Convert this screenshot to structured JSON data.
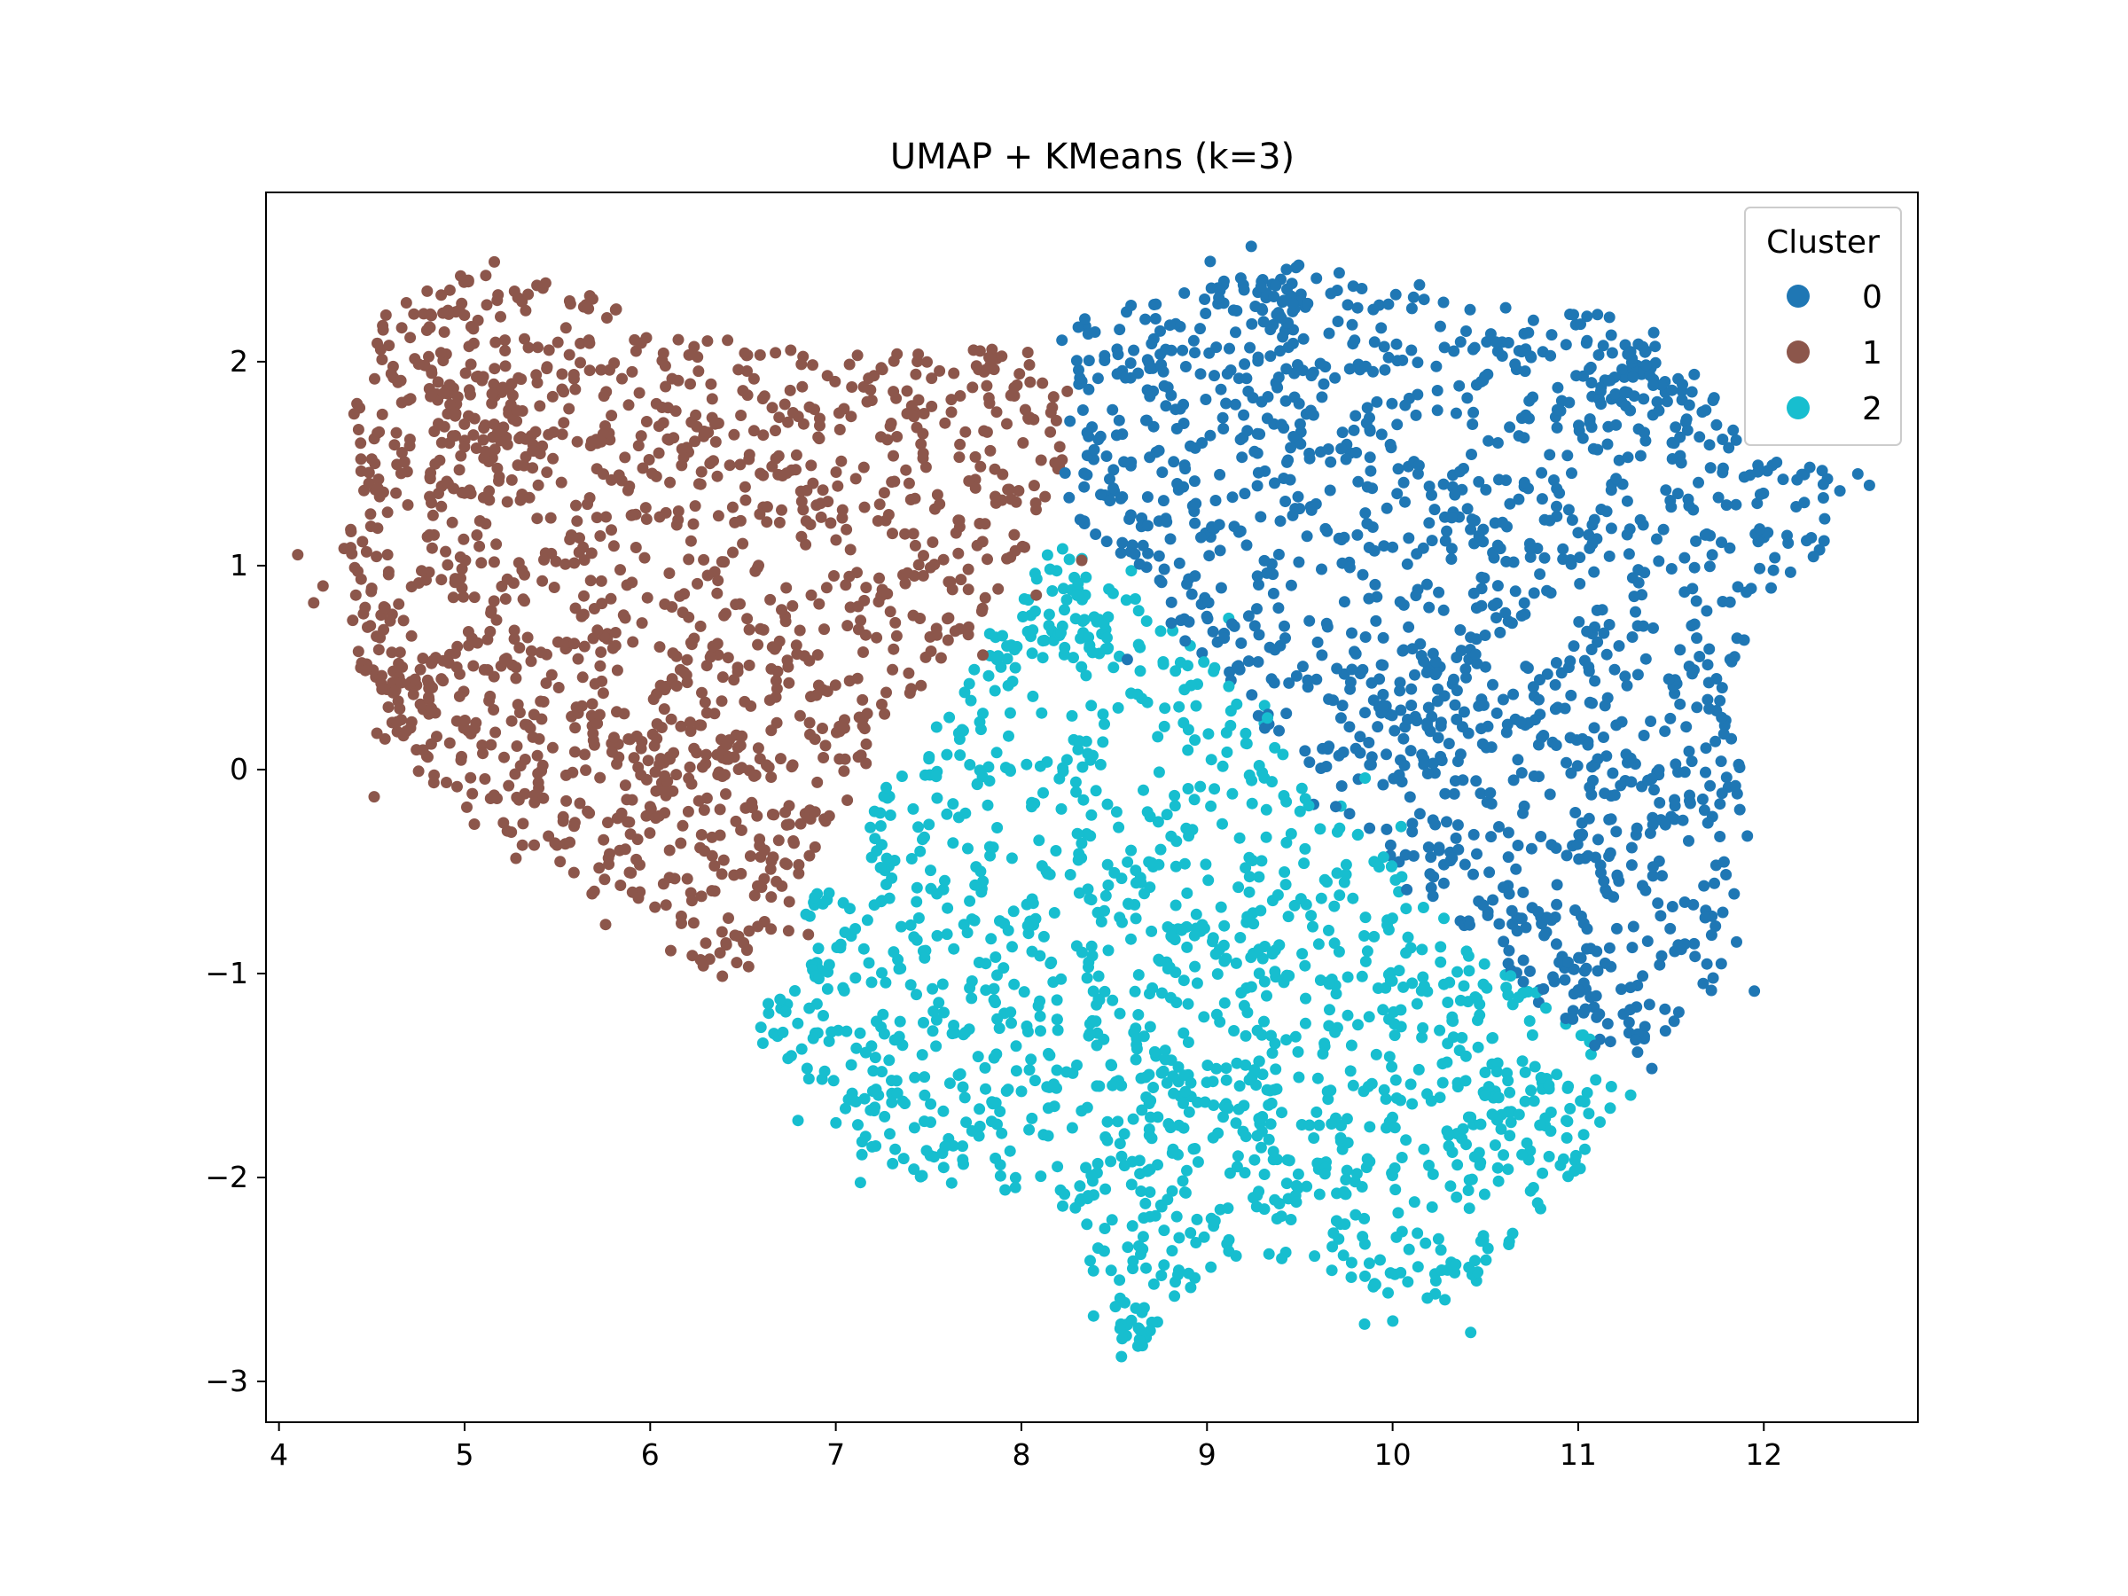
{
  "chart_data": {
    "type": "scatter",
    "title": "UMAP + KMeans (k=3)",
    "xlabel": "",
    "ylabel": "",
    "xlim": [
      3.93,
      12.83
    ],
    "ylim": [
      -3.2,
      2.83
    ],
    "xticks": [
      4,
      5,
      6,
      7,
      8,
      9,
      10,
      11,
      12
    ],
    "yticks": [
      -3,
      -2,
      -1,
      0,
      1,
      2
    ],
    "xtick_labels": [
      "4",
      "5",
      "6",
      "7",
      "8",
      "9",
      "10",
      "11",
      "12"
    ],
    "ytick_labels": [
      "−3",
      "−2",
      "−1",
      "0",
      "1",
      "2"
    ],
    "grid": false,
    "legend": {
      "title": "Cluster",
      "placement": "top-right",
      "entries": [
        "0",
        "1",
        "2"
      ]
    },
    "series": [
      {
        "name": "0",
        "color": "#1f77b4",
        "outline": [
          [
            8.3,
            2.2
          ],
          [
            9.1,
            2.45
          ],
          [
            9.5,
            2.5
          ],
          [
            10.1,
            2.35
          ],
          [
            10.7,
            2.25
          ],
          [
            11.2,
            2.25
          ],
          [
            11.6,
            2.0
          ],
          [
            11.9,
            1.6
          ],
          [
            12.45,
            1.45
          ],
          [
            12.35,
            1.1
          ],
          [
            12.0,
            0.85
          ],
          [
            11.85,
            0.3
          ],
          [
            11.95,
            -0.3
          ],
          [
            11.95,
            -0.8
          ],
          [
            11.6,
            -1.15
          ],
          [
            11.4,
            -1.4
          ],
          [
            11.0,
            -1.35
          ],
          [
            10.6,
            -1.0
          ],
          [
            10.4,
            -0.8
          ],
          [
            10.0,
            -0.5
          ],
          [
            9.7,
            -0.2
          ],
          [
            9.4,
            0.1
          ],
          [
            9.1,
            0.4
          ],
          [
            8.8,
            0.7
          ],
          [
            8.4,
            1.1
          ],
          [
            8.25,
            1.3
          ],
          [
            8.2,
            1.8
          ]
        ],
        "density": 2.7,
        "clumps": [
          [
            11.3,
            1.95,
            0.18,
            40
          ],
          [
            9.35,
            2.3,
            0.22,
            25
          ],
          [
            10.3,
            0.3,
            0.3,
            30
          ],
          [
            10.9,
            -0.9,
            0.2,
            20
          ]
        ]
      },
      {
        "name": "1",
        "color": "#8c564b",
        "outline": [
          [
            4.5,
            2.2
          ],
          [
            5.0,
            2.5
          ],
          [
            5.6,
            2.35
          ],
          [
            6.2,
            2.15
          ],
          [
            6.8,
            2.05
          ],
          [
            7.3,
            2.1
          ],
          [
            7.8,
            2.1
          ],
          [
            8.25,
            2.0
          ],
          [
            8.25,
            1.6
          ],
          [
            8.1,
            1.2
          ],
          [
            7.9,
            0.9
          ],
          [
            7.65,
            0.6
          ],
          [
            7.35,
            0.25
          ],
          [
            7.1,
            -0.1
          ],
          [
            6.9,
            -0.4
          ],
          [
            6.7,
            -0.75
          ],
          [
            6.5,
            -1.05
          ],
          [
            6.2,
            -0.95
          ],
          [
            5.9,
            -0.75
          ],
          [
            5.5,
            -0.55
          ],
          [
            5.1,
            -0.35
          ],
          [
            4.75,
            -0.05
          ],
          [
            4.5,
            0.3
          ],
          [
            4.35,
            0.8
          ],
          [
            4.35,
            1.4
          ],
          [
            4.4,
            1.9
          ]
        ],
        "density": 2.9,
        "clumps": [
          [
            5.05,
            1.75,
            0.28,
            60
          ],
          [
            4.75,
            0.35,
            0.18,
            35
          ],
          [
            6.2,
            0.05,
            0.25,
            25
          ]
        ]
      },
      {
        "name": "2",
        "color": "#17becf",
        "outline": [
          [
            8.2,
            1.15
          ],
          [
            8.6,
            0.85
          ],
          [
            9.0,
            0.55
          ],
          [
            9.35,
            0.2
          ],
          [
            9.65,
            -0.1
          ],
          [
            10.0,
            -0.45
          ],
          [
            10.35,
            -0.75
          ],
          [
            10.7,
            -1.05
          ],
          [
            11.05,
            -1.3
          ],
          [
            11.25,
            -1.55
          ],
          [
            11.1,
            -1.9
          ],
          [
            10.7,
            -2.3
          ],
          [
            10.4,
            -2.6
          ],
          [
            10.0,
            -2.6
          ],
          [
            9.6,
            -2.45
          ],
          [
            9.2,
            -2.35
          ],
          [
            8.85,
            -2.55
          ],
          [
            8.65,
            -2.9
          ],
          [
            8.45,
            -2.6
          ],
          [
            8.2,
            -2.1
          ],
          [
            7.7,
            -2.05
          ],
          [
            7.2,
            -1.95
          ],
          [
            6.8,
            -1.6
          ],
          [
            6.55,
            -1.25
          ],
          [
            6.75,
            -0.8
          ],
          [
            7.05,
            -0.4
          ],
          [
            7.35,
            0.0
          ],
          [
            7.65,
            0.4
          ],
          [
            7.95,
            0.85
          ]
        ],
        "density": 2.7,
        "clumps": [
          [
            8.3,
            0.7,
            0.18,
            25
          ],
          [
            9.1,
            -1.6,
            0.3,
            30
          ],
          [
            10.4,
            -1.6,
            0.25,
            25
          ],
          [
            8.6,
            -2.75,
            0.12,
            15
          ]
        ]
      }
    ]
  }
}
